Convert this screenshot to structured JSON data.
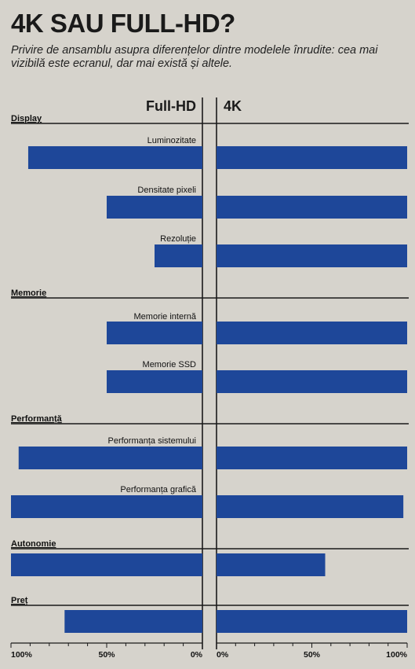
{
  "title": "4K SAU FULL-HD?",
  "subtitle": "Privire de ansamblu asupra diferențelor dintre modelele înrudite: cea mai vizibilă este ecranul, dar mai există și altele.",
  "colors": {
    "bar": "#1e4799",
    "background": "#d6d3cc",
    "line": "#1a1a1a"
  },
  "chart_data": {
    "type": "bar",
    "orientation": "horizontal-butterfly",
    "series": [
      {
        "name": "Full-HD",
        "side": "left"
      },
      {
        "name": "4K",
        "side": "right"
      }
    ],
    "groups": [
      {
        "name": "Display",
        "items": [
          {
            "label": "Luminozitate",
            "fullhd": 91,
            "k4": 100
          },
          {
            "label": "Densitate pixeli",
            "fullhd": 50,
            "k4": 100
          },
          {
            "label": "Rezoluție",
            "fullhd": 25,
            "k4": 100
          }
        ]
      },
      {
        "name": "Memorie",
        "items": [
          {
            "label": "Memorie internă",
            "fullhd": 50,
            "k4": 100
          },
          {
            "label": "Memorie SSD",
            "fullhd": 50,
            "k4": 100
          }
        ]
      },
      {
        "name": "Performanță",
        "items": [
          {
            "label": "Performanța sistemului",
            "fullhd": 96,
            "k4": 100
          },
          {
            "label": "Performanța grafică",
            "fullhd": 100,
            "k4": 98
          }
        ]
      },
      {
        "name": "Autonomie",
        "items": [
          {
            "label": "",
            "fullhd": 100,
            "k4": 57
          }
        ]
      },
      {
        "name": "Preț",
        "items": [
          {
            "label": "",
            "fullhd": 72,
            "k4": 100
          }
        ]
      }
    ],
    "ticks_left": [
      "100%",
      "50%",
      "0%"
    ],
    "ticks_right": [
      "0%",
      "50%",
      "100%"
    ],
    "xlim": [
      0,
      100
    ],
    "grid": false,
    "legend": "top-center"
  }
}
